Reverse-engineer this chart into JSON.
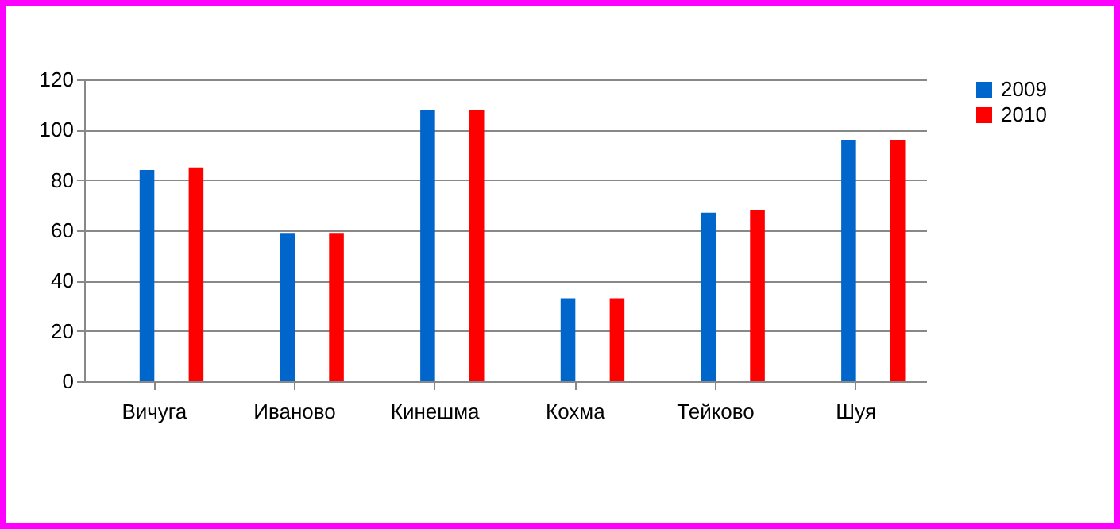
{
  "chart_data": {
    "type": "bar",
    "categories": [
      "Вичуга",
      "Иваново",
      "Кинешма",
      "Кохма",
      "Тейково",
      "Шуя"
    ],
    "series": [
      {
        "name": "2009",
        "color": "#0066cc",
        "values": [
          84,
          59,
          108,
          33,
          67,
          96
        ]
      },
      {
        "name": "2010",
        "color": "#ff0000",
        "values": [
          85,
          59,
          108,
          33,
          68,
          96
        ]
      }
    ],
    "ylim": [
      0,
      120
    ],
    "yticks": [
      0,
      20,
      40,
      60,
      80,
      100,
      120
    ],
    "grid": "y",
    "legend": "right"
  }
}
